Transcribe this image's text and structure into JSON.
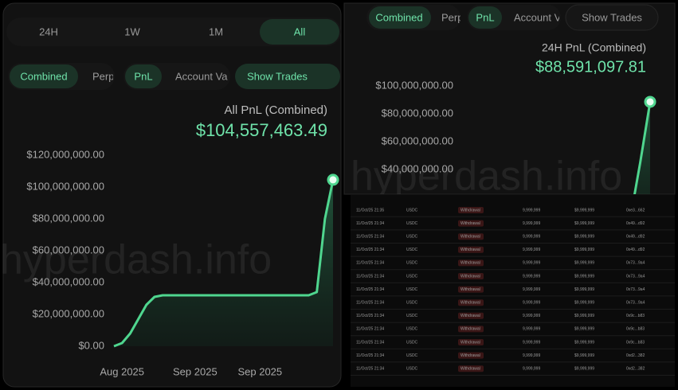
{
  "chart_data": [
    {
      "type": "line",
      "title": "All PnL (Combined)",
      "subtitle": "$104,557,463.49",
      "categories": [
        null,
        "Aug 2025",
        null,
        null,
        null,
        null,
        null,
        null,
        null,
        null,
        "Sep 2025",
        null,
        null,
        null,
        null,
        null,
        null,
        null,
        "Sep 2025",
        null,
        null,
        null,
        null,
        null,
        null,
        null,
        null,
        null
      ],
      "series": [
        {
          "name": "PnL",
          "color": "#4fd68f",
          "values": [
            0,
            2000000,
            8000000,
            17000000,
            26000000,
            31000000,
            32000000,
            32000000,
            32000000,
            32000000,
            32000000,
            32000000,
            32000000,
            32000000,
            32000000,
            32000000,
            32000000,
            32000000,
            32000000,
            32000000,
            32000000,
            32000000,
            32000000,
            32000000,
            32000000,
            34000000,
            80000000,
            104557463.49
          ]
        }
      ],
      "ylim": [
        0,
        120000000
      ],
      "yticks": [
        {
          "value": 0,
          "label": "$0.00"
        },
        {
          "value": 20000000,
          "label": "$20,000,000.00"
        },
        {
          "value": 40000000,
          "label": "$40,000,000.00"
        },
        {
          "value": 60000000,
          "label": "$60,000,000.00"
        },
        {
          "value": 80000000,
          "label": "$80,000,000.00"
        },
        {
          "value": 100000000,
          "label": "$100,000,000.00"
        },
        {
          "value": 120000000,
          "label": "$120,000,000.00"
        }
      ],
      "grid": false
    },
    {
      "type": "line",
      "title": "24H PnL (Combined)",
      "subtitle": "$88,591,097.81",
      "series": [
        {
          "name": "PnL",
          "color": "#4fd68f",
          "values": [
            0,
            0,
            0,
            0,
            0,
            0,
            0,
            0,
            0,
            0,
            0,
            0,
            0,
            0,
            0,
            1000000,
            2000000,
            5000000,
            45000000,
            88591097.81
          ]
        }
      ],
      "ylim": [
        0,
        100000000
      ],
      "yticks": [
        {
          "value": 40000000,
          "label": "$40,000,000.00"
        },
        {
          "value": 60000000,
          "label": "$60,000,000.00"
        },
        {
          "value": 80000000,
          "label": "$80,000,000.00"
        },
        {
          "value": 100000000,
          "label": "$100,000,000.00"
        }
      ],
      "grid": false
    }
  ],
  "left_panel": {
    "time_tabs": [
      "24H",
      "1W",
      "1M",
      "All"
    ],
    "toggles": [
      "Combined",
      "Perp",
      "PnL",
      "Account Va",
      "Show Trades"
    ]
  },
  "right_panel": {
    "toggles": [
      "Combined",
      "Perp",
      "PnL",
      "Account Va",
      "Show Trades"
    ]
  },
  "watermark": "hyperdash.info",
  "table": {
    "rows": [
      [
        "11/Oct/25 21:35",
        "USDC",
        "Withdrawal",
        "9,999,999",
        "$9,999,999",
        "0xe3...662"
      ],
      [
        "11/Oct/25 21:34",
        "USDC",
        "Withdrawal",
        "9,999,999",
        "$9,999,999",
        "0x49...d92"
      ],
      [
        "11/Oct/25 21:34",
        "USDC",
        "Withdrawal",
        "9,999,999",
        "$9,999,999",
        "0x49...d92"
      ],
      [
        "11/Oct/25 21:34",
        "USDC",
        "Withdrawal",
        "9,999,999",
        "$9,999,999",
        "0x49...d92"
      ],
      [
        "11/Oct/25 21:34",
        "USDC",
        "Withdrawal",
        "9,999,999",
        "$9,999,999",
        "0x73...9a4"
      ],
      [
        "11/Oct/25 21:34",
        "USDC",
        "Withdrawal",
        "9,999,999",
        "$9,999,999",
        "0x73...9a4"
      ],
      [
        "11/Oct/25 21:34",
        "USDC",
        "Withdrawal",
        "9,999,999",
        "$9,999,999",
        "0x73...9a4"
      ],
      [
        "11/Oct/25 21:34",
        "USDC",
        "Withdrawal",
        "9,999,999",
        "$9,999,999",
        "0x73...9a4"
      ],
      [
        "11/Oct/25 21:34",
        "USDC",
        "Withdrawal",
        "9,999,999",
        "$9,999,999",
        "0x9c...b83"
      ],
      [
        "11/Oct/25 21:34",
        "USDC",
        "Withdrawal",
        "9,999,999",
        "$9,999,999",
        "0x9c...b83"
      ],
      [
        "11/Oct/25 21:34",
        "USDC",
        "Withdrawal",
        "9,999,999",
        "$9,999,999",
        "0x9c...b83"
      ],
      [
        "11/Oct/25 21:34",
        "USDC",
        "Withdrawal",
        "9,999,999",
        "$9,999,999",
        "0xd2...382"
      ],
      [
        "11/Oct/25 21:34",
        "USDC",
        "Withdrawal",
        "9,999,999",
        "$9,999,999",
        "0xd2...382"
      ]
    ]
  }
}
